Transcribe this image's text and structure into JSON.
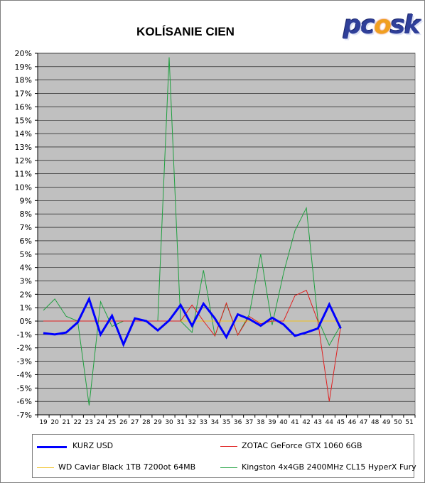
{
  "chart_data": {
    "type": "line",
    "title": "KOLÍSANIE CIEN",
    "xlabel": "",
    "ylabel": "",
    "ylim": [
      -7,
      20
    ],
    "y_ticks": [
      -7,
      -6,
      -5,
      -4,
      -3,
      -2,
      -1,
      0,
      1,
      2,
      3,
      4,
      5,
      6,
      7,
      8,
      9,
      10,
      11,
      12,
      13,
      14,
      15,
      16,
      17,
      18,
      19,
      20
    ],
    "y_tick_suffix": "%",
    "categories": [
      "19",
      "20",
      "21",
      "22",
      "23",
      "24",
      "25",
      "26",
      "27",
      "28",
      "29",
      "30",
      "31",
      "32",
      "33",
      "34",
      "35",
      "36",
      "37",
      "38",
      "39",
      "40",
      "41",
      "42",
      "43",
      "44",
      "45",
      "46",
      "47",
      "48",
      "49",
      "50",
      "51"
    ],
    "grid": true,
    "legend_position": "bottom",
    "series": [
      {
        "name": "KURZ USD",
        "color": "#0000ff",
        "width": 3,
        "values": [
          -0.9,
          -1.0,
          -0.85,
          -0.1,
          1.65,
          -1.0,
          0.4,
          -1.75,
          0.2,
          0.0,
          -0.7,
          0.05,
          1.2,
          -0.35,
          1.3,
          0.2,
          -1.2,
          0.5,
          0.15,
          -0.35,
          0.25,
          -0.25,
          -1.1,
          -0.85,
          -0.55,
          1.25,
          -0.55,
          null,
          null,
          null,
          null,
          null,
          null
        ]
      },
      {
        "name": "ZOTAC GeForce GTX 1060 6GB",
        "color": "#e02020",
        "width": 1,
        "values": [
          0,
          0,
          0,
          0,
          0,
          0,
          0,
          0,
          0,
          0,
          0,
          0,
          0,
          1.2,
          0,
          -1.1,
          1.35,
          -1.05,
          0.35,
          -0.2,
          0,
          0,
          1.9,
          2.3,
          0,
          -6.0,
          -0.4,
          null,
          null,
          null,
          null,
          null,
          null
        ]
      },
      {
        "name": "WD Caviar Black 1TB 7200ot 64MB",
        "color": "#f0c020",
        "width": 1,
        "values": [
          0,
          0,
          0,
          0,
          0,
          0,
          0,
          0,
          0,
          0,
          0,
          0,
          0,
          0,
          0,
          0,
          0,
          0,
          0,
          0,
          0,
          0,
          0,
          0,
          0,
          0,
          0,
          null,
          null,
          null,
          null,
          null,
          null
        ]
      },
      {
        "name": "Kingston 4x4GB 2400MHz CL15 HyperX Fury",
        "color": "#20a040",
        "width": 1,
        "values": [
          0.8,
          1.65,
          0.35,
          0.0,
          -6.3,
          1.45,
          -0.4,
          0.0,
          0.0,
          0.0,
          0.0,
          19.7,
          0.0,
          -0.85,
          3.8,
          -1.1,
          1.3,
          -1.05,
          0.5,
          5.0,
          -0.3,
          3.6,
          6.75,
          8.45,
          0.15,
          -1.8,
          -0.3,
          null,
          null,
          null,
          null,
          null,
          null
        ]
      }
    ]
  },
  "brand": {
    "logo_pre": "pc",
    "logo_flame": "o",
    "logo_post": "sk"
  }
}
